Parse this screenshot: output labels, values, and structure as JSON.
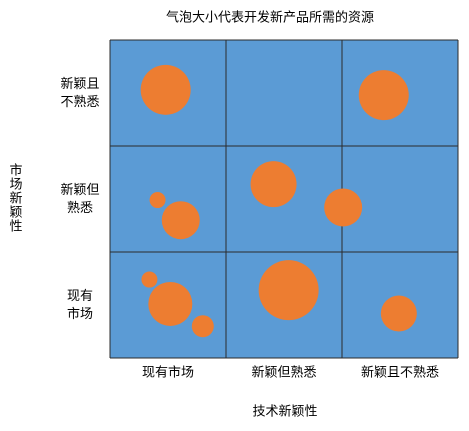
{
  "chart_data": {
    "type": "bubble",
    "title": "气泡大小代表开发新产品所需的资源",
    "x_label": "技术新颖性",
    "y_label": "市场新颖性",
    "x_categories": [
      "现有市场",
      "新颖但熟悉",
      "新颖且不熟悉"
    ],
    "y_categories": [
      "现有市场",
      "新颖但熟悉",
      "新颖且不熟悉"
    ],
    "xlim": [
      0,
      3
    ],
    "ylim": [
      0,
      3
    ],
    "xticks": [
      0,
      1,
      2,
      3
    ],
    "yticks": [
      0,
      1,
      2,
      3
    ],
    "grid": true,
    "background": "#5b9bd5",
    "color": "#ed7d31",
    "x": [
      0.48,
      2.36,
      1.41,
      2.01,
      0.41,
      0.61,
      1.54,
      0.34,
      0.52,
      0.8,
      2.49
    ],
    "y": [
      2.53,
      2.48,
      1.64,
      1.42,
      1.49,
      1.3,
      0.64,
      0.74,
      0.51,
      0.3,
      0.42
    ],
    "size": [
      25,
      25,
      23,
      19,
      8,
      19,
      30,
      8,
      22,
      11,
      18
    ]
  }
}
